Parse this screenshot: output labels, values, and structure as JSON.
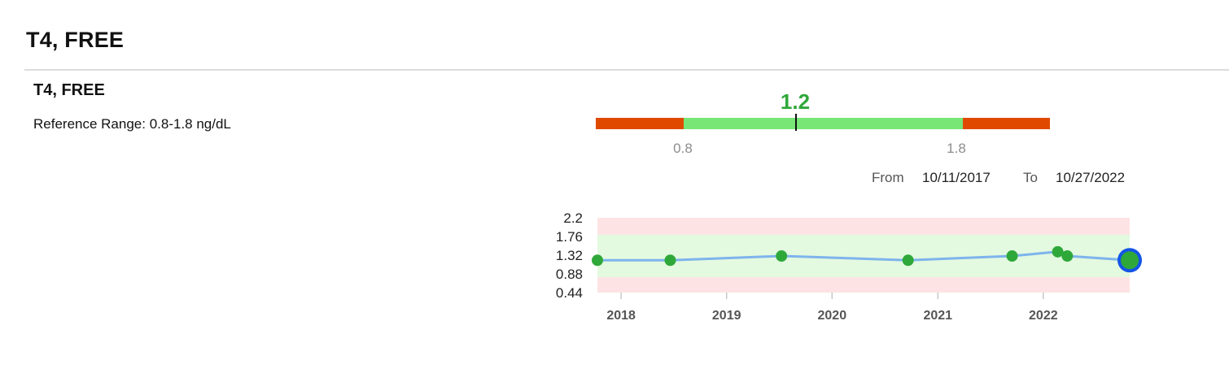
{
  "header": {
    "title": "T4, FREE"
  },
  "result": {
    "name": "T4, FREE",
    "reference_range_text": "Reference Range: 0.8-1.8 ng/dL",
    "current_value": "1.2",
    "range_low_label": "0.8",
    "range_high_label": "1.8",
    "colors": {
      "out_of_range": "#e04a00",
      "in_range": "#77e677",
      "value_text": "#2fa83a"
    }
  },
  "date_filter": {
    "from_label": "From",
    "from_value": "10/11/2017",
    "to_label": "To",
    "to_value": "10/27/2022"
  },
  "chart_data": {
    "type": "line",
    "y_ticks": [
      "2.2",
      "1.76",
      "1.32",
      "0.88",
      "0.44"
    ],
    "x_ticks": [
      "2018",
      "2019",
      "2020",
      "2021",
      "2022"
    ],
    "ylim": [
      0.44,
      2.2
    ],
    "xlim": [
      "2017-10-11",
      "2022-10-27"
    ],
    "reference_band": [
      0.8,
      1.8
    ],
    "band_colors": {
      "in_range": "#e3f9e0",
      "out_of_range": "#fde3e3"
    },
    "line_color": "#7db4ec",
    "point_color": "#2fa83a",
    "highlight_ring_color": "#1455e6",
    "series": [
      {
        "points": [
          {
            "x": "2017-10-11",
            "y": 1.2
          },
          {
            "x": "2018-06-20",
            "y": 1.2
          },
          {
            "x": "2019-07-10",
            "y": 1.3
          },
          {
            "x": "2020-09-20",
            "y": 1.2
          },
          {
            "x": "2021-09-15",
            "y": 1.3
          },
          {
            "x": "2022-02-20",
            "y": 1.4
          },
          {
            "x": "2022-03-25",
            "y": 1.3
          },
          {
            "x": "2022-10-27",
            "y": 1.2
          }
        ]
      }
    ]
  }
}
